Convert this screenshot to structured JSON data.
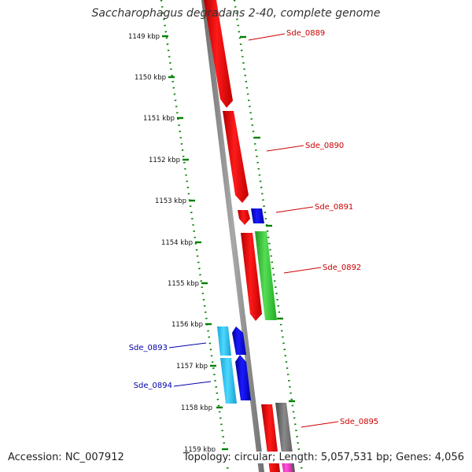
{
  "title": "Saccharophagus degradans 2-40, complete genome",
  "footer": {
    "accession": "Accession: NC_007912",
    "summary": "Topology: circular; Length: 5,057,531 bp; Genes: 4,056"
  },
  "ticks": [
    "1149 kbp",
    "1150 kbp",
    "1151 kbp",
    "1152 kbp",
    "1153 kbp",
    "1154 kbp",
    "1155 kbp",
    "1156 kbp",
    "1157 kbp",
    "1158 kbp",
    "1159 kbp"
  ],
  "genes": [
    {
      "id": "Sde_0889",
      "strand": "forward",
      "color": "#ff0000"
    },
    {
      "id": "Sde_0890",
      "strand": "forward",
      "color": "#ff0000"
    },
    {
      "id": "Sde_0891",
      "strand": "forward",
      "color": "#ff0000"
    },
    {
      "id": "Sde_0892",
      "strand": "forward",
      "color": "#ff0000"
    },
    {
      "id": "Sde_0893",
      "strand": "reverse",
      "color": "#0000cc"
    },
    {
      "id": "Sde_0894",
      "strand": "reverse",
      "color": "#0000cc"
    },
    {
      "id": "Sde_0895",
      "strand": "forward",
      "color": "#ff0000"
    }
  ],
  "colors": {
    "backbone": "#808080",
    "gc_track": "#008000",
    "forward_gene": "#ff0000",
    "forward_label": "#cc0000",
    "reverse_gene": "#0000cc",
    "reverse_label": "#0000aa",
    "cyan_feature": "#1ec8f0",
    "green_feature": "#33cc33",
    "dark_feature": "#666666",
    "magenta_feature": "#ff33cc"
  }
}
